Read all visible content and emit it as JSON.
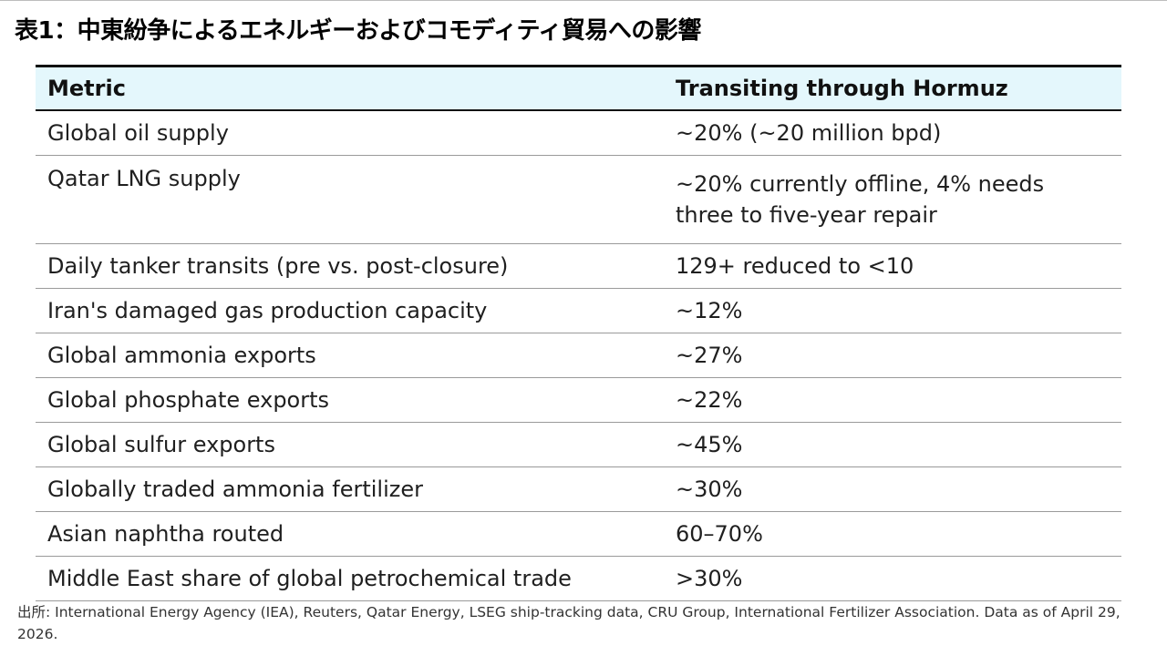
{
  "title": "表1：中東紛争によるエネルギーおよびコモディティ貿易への影響",
  "table": {
    "headers": [
      "Metric",
      "Transiting through Hormuz"
    ],
    "rows": [
      {
        "metric": "Global oil supply",
        "value": "~20% (~20 million bpd)"
      },
      {
        "metric": "Qatar LNG supply",
        "value": "~20% currently offline, 4% needs three to five-year repair"
      },
      {
        "metric": "Daily tanker transits (pre vs. post-closure)",
        "value": "129+ reduced to <10"
      },
      {
        "metric": "Iran's damaged gas production capacity",
        "value": "~12%"
      },
      {
        "metric": "Global ammonia exports",
        "value": "~27%"
      },
      {
        "metric": "Global phosphate exports",
        "value": "~22%"
      },
      {
        "metric": "Global sulfur exports",
        "value": "~45%"
      },
      {
        "metric": "Globally traded ammonia fertilizer",
        "value": "~30%"
      },
      {
        "metric": "Asian naphtha routed",
        "value": "60–70%"
      },
      {
        "metric": "Middle East share of global petrochemical trade",
        "value": ">30%"
      }
    ]
  },
  "source": "出所: International Energy Agency (IEA), Reuters, Qatar Energy, LSEG ship-tracking data, CRU Group,  International Fertilizer Association. Data as of April 29, 2026.",
  "colors": {
    "header_bg": "#e4f7fc",
    "rule": "#111111",
    "row_divider": "#9a9a9a"
  }
}
